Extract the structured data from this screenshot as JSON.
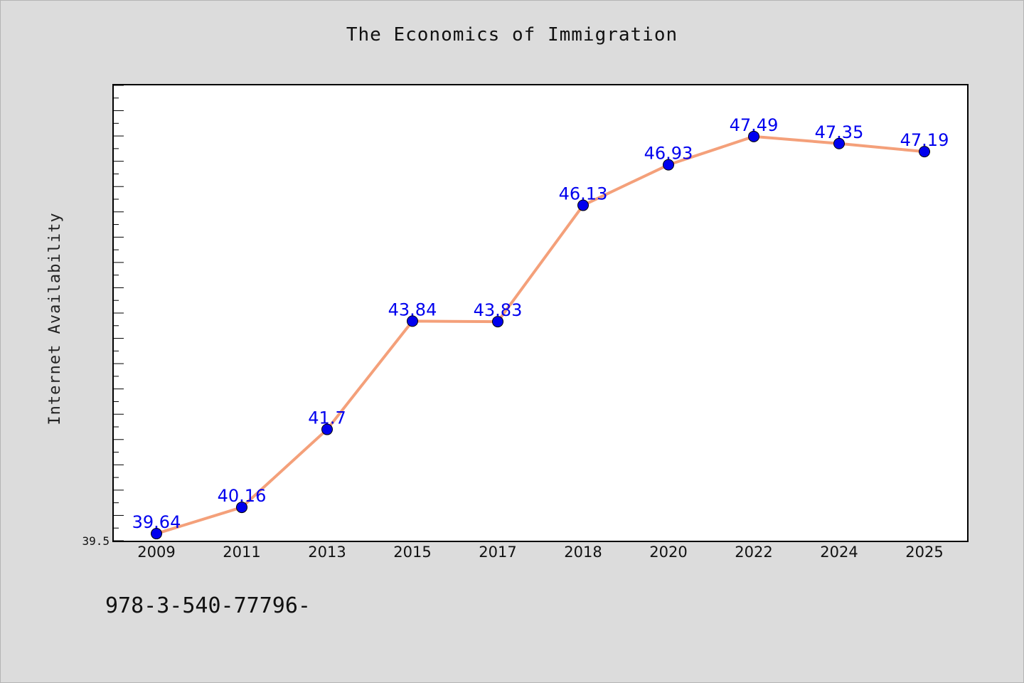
{
  "chart_data": {
    "type": "line",
    "title": "The Economics of Immigration",
    "xlabel": "",
    "ylabel": "Internet Availability",
    "categories": [
      "2009",
      "2011",
      "2013",
      "2015",
      "2017",
      "2018",
      "2020",
      "2022",
      "2024",
      "2025"
    ],
    "series": [
      {
        "values": [
          39.64,
          40.16,
          41.7,
          43.84,
          43.83,
          46.13,
          46.93,
          47.49,
          47.35,
          47.19
        ],
        "labels": [
          "39.64",
          "40.16",
          "41.7",
          "43.84",
          "43.83",
          "46.13",
          "46.93",
          "47.49",
          "47.35",
          "47.19"
        ]
      }
    ],
    "ylim": [
      39.5,
      48.5
    ],
    "yticks": [
      "39.5"
    ],
    "line_color": "#f4a07a",
    "marker_color": "#0000ee",
    "label_color": "#0000ee",
    "grid": false
  },
  "footer": {
    "code": "978-3-540-77796-"
  }
}
